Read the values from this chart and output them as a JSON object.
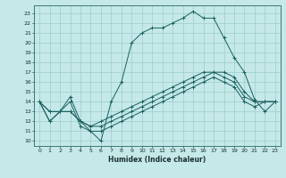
{
  "title": "",
  "xlabel": "Humidex (Indice chaleur)",
  "bg_color": "#c5e8e8",
  "grid_color": "#9ecece",
  "line_color": "#1a6060",
  "xlim": [
    -0.5,
    23.5
  ],
  "ylim": [
    9.5,
    23.8
  ],
  "yticks": [
    10,
    11,
    12,
    13,
    14,
    15,
    16,
    17,
    18,
    19,
    20,
    21,
    22,
    23
  ],
  "xticks": [
    0,
    1,
    2,
    3,
    4,
    5,
    6,
    7,
    8,
    9,
    10,
    11,
    12,
    13,
    14,
    15,
    16,
    17,
    18,
    19,
    20,
    21,
    22,
    23
  ],
  "series": [
    [
      14,
      12,
      13,
      14,
      11.5,
      11,
      10,
      14,
      16,
      20,
      21,
      21.5,
      21.5,
      22,
      22.5,
      23.2,
      22.5,
      22.5,
      20.5,
      18.5,
      17,
      14.2,
      13,
      14
    ],
    [
      14,
      13,
      13,
      14.5,
      12,
      11.5,
      12,
      12.5,
      13,
      13.5,
      14,
      14.5,
      15,
      15.5,
      16,
      16.5,
      17,
      17,
      17,
      16.5,
      15,
      14,
      14,
      14
    ],
    [
      14,
      13,
      13,
      13,
      12,
      11.5,
      11.5,
      12,
      12.5,
      13,
      13.5,
      14,
      14.5,
      15,
      15.5,
      16,
      16.5,
      17,
      16.5,
      16,
      14.5,
      14,
      14,
      14
    ],
    [
      14,
      12,
      13,
      13,
      12,
      11,
      11,
      11.5,
      12,
      12.5,
      13,
      13.5,
      14,
      14.5,
      15,
      15.5,
      16,
      16.5,
      16,
      15.5,
      14,
      13.5,
      14,
      14
    ]
  ]
}
